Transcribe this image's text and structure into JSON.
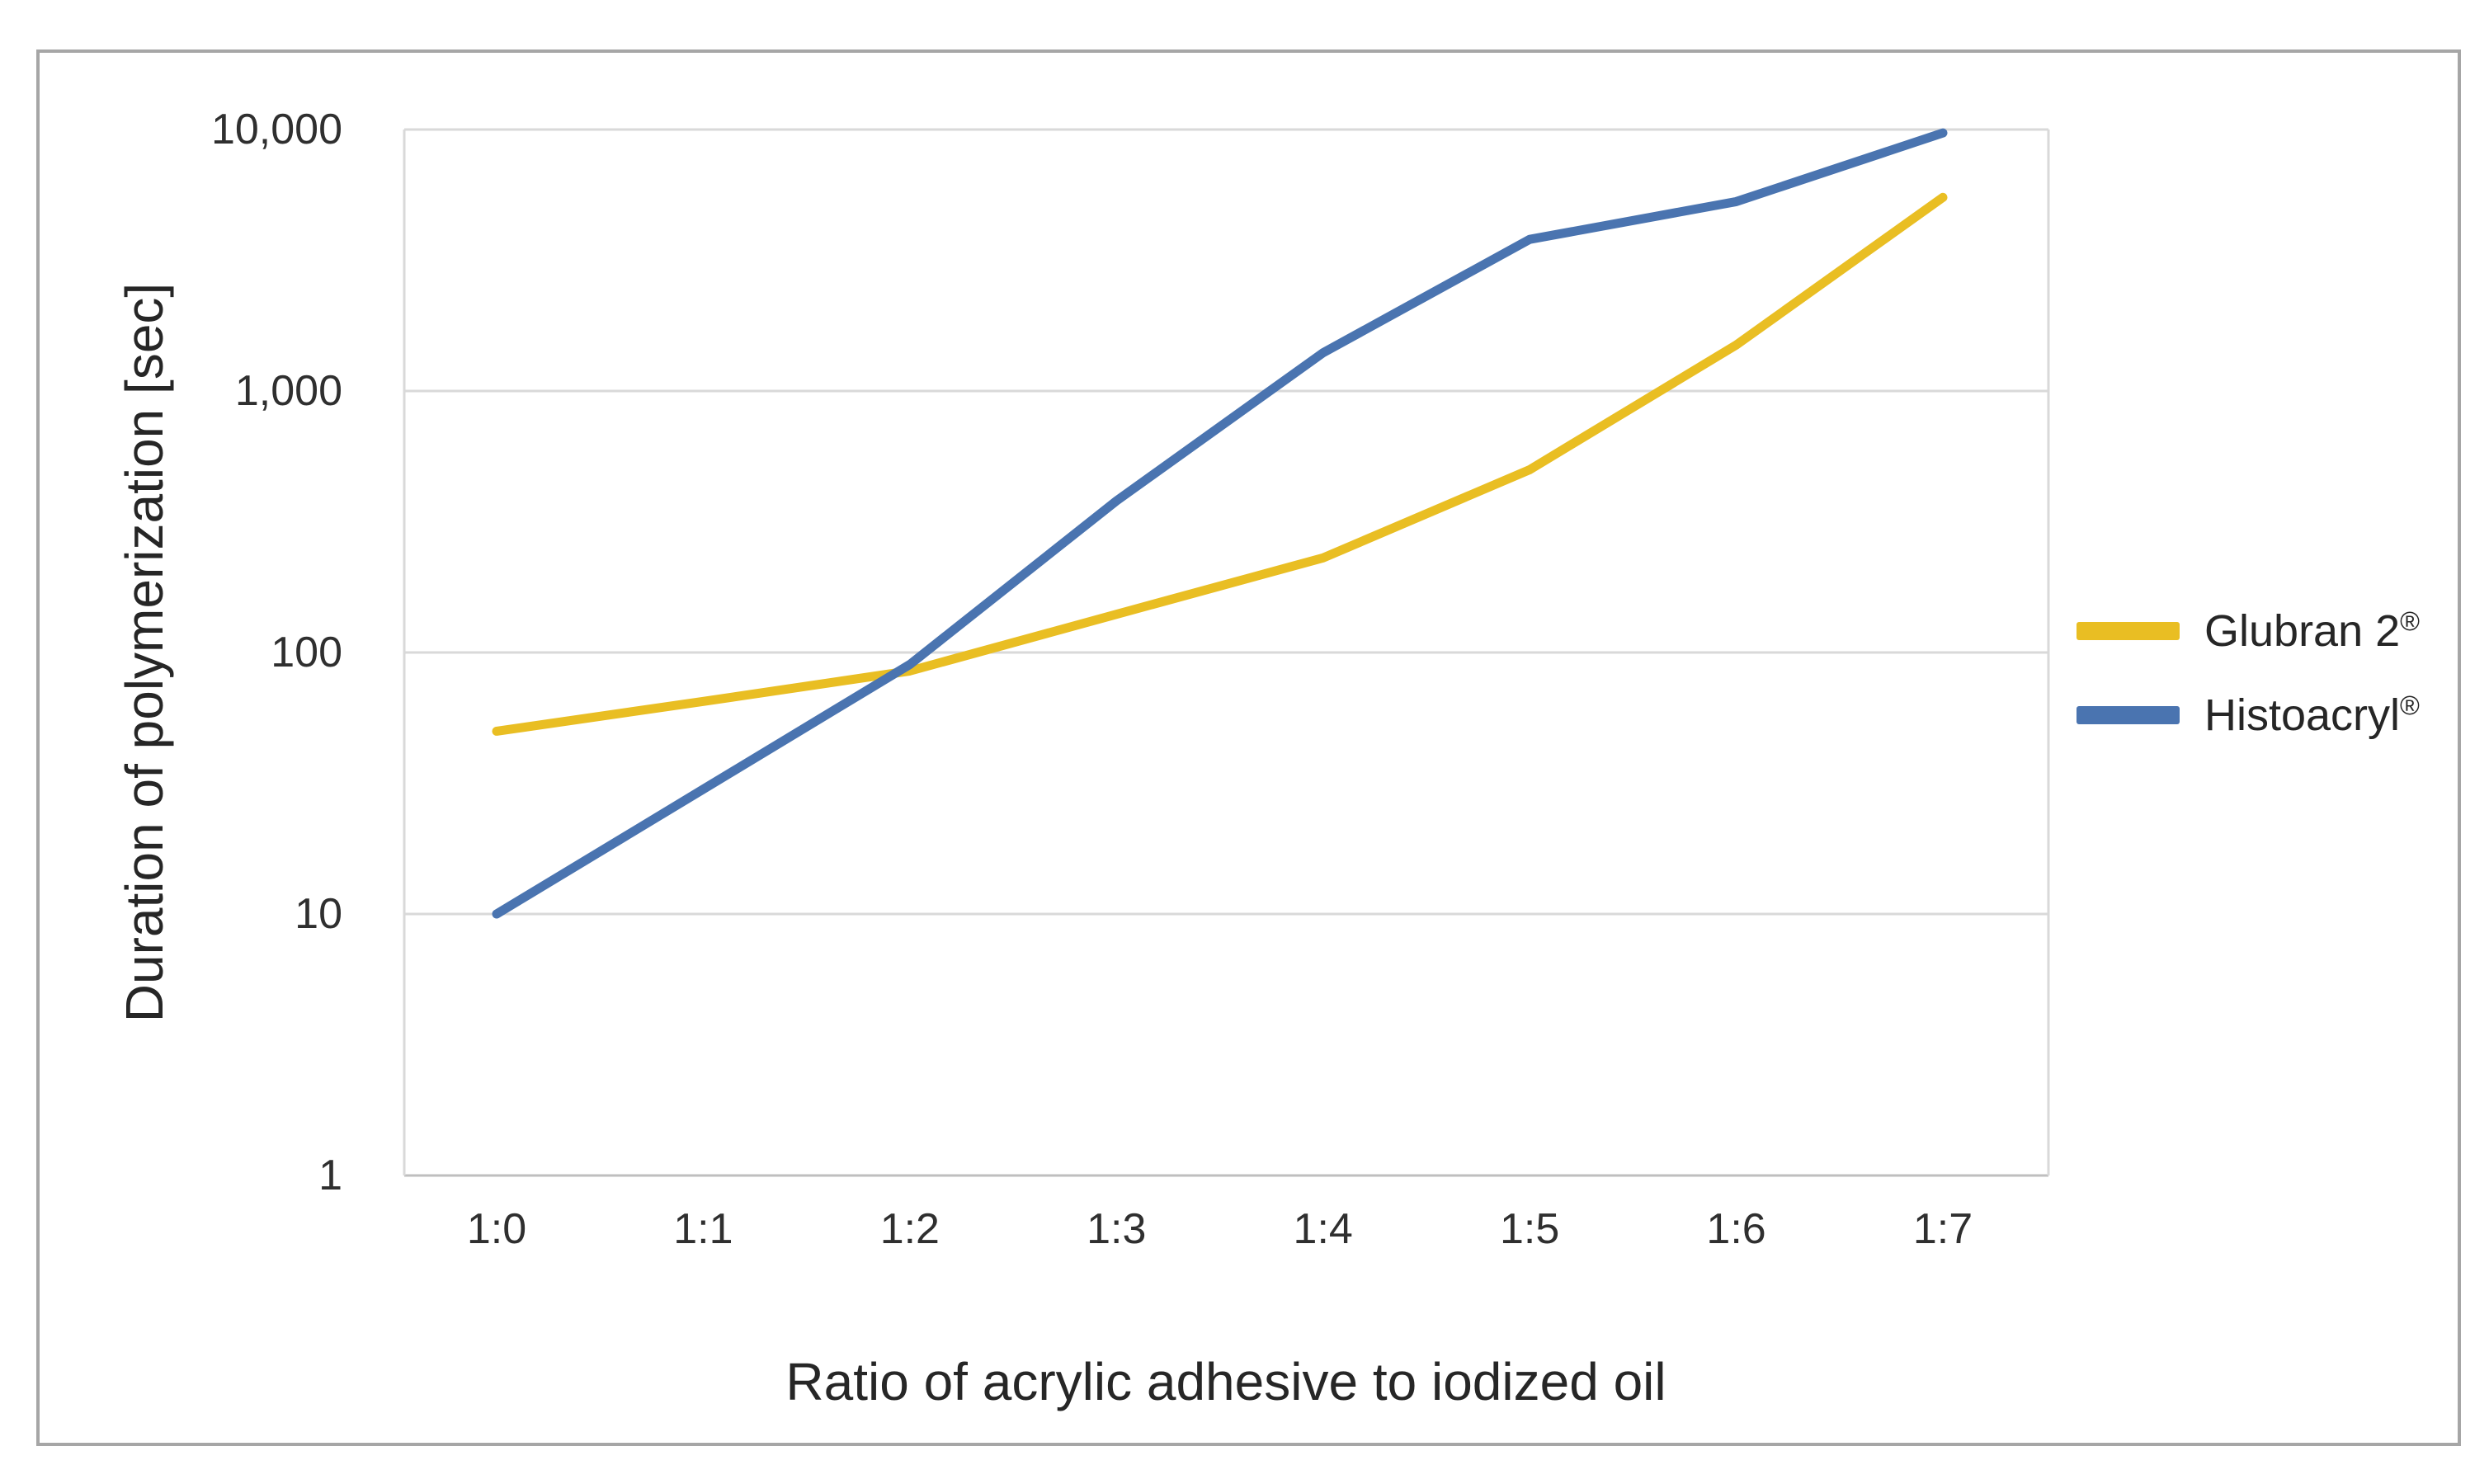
{
  "figure": {
    "background": "#FFFFFF",
    "border_color": "#A6A6A6"
  },
  "chart_data": {
    "type": "line",
    "title": "",
    "xlabel": "Ratio of acrylic adhesive to iodized oil",
    "ylabel": "Duration of polymerization [sec]",
    "x_type": "categorical",
    "y_scale": "log10",
    "ylim": [
      1,
      10000
    ],
    "grid": "horizontal gridlines at each power of 10",
    "grid_color": "#D9D9D9",
    "axis_line_color": "#BFBFBF",
    "text_color": "#2F2F2F",
    "legend_position": "right, outside plot area, middle",
    "yticks": [
      {
        "value": 10000,
        "label": "10,000"
      },
      {
        "value": 1000,
        "label": "1,000"
      },
      {
        "value": 100,
        "label": "100"
      },
      {
        "value": 10,
        "label": "10"
      },
      {
        "value": 1,
        "label": "1"
      }
    ],
    "categories": [
      "1:0",
      "1:1",
      "1:2",
      "1:3",
      "1:4",
      "1:5",
      "1:6",
      "1:7"
    ],
    "series": [
      {
        "name": "Glubran 2®",
        "color": "#E9BE23",
        "values": [
          50,
          65,
          85,
          140,
          230,
          500,
          1500,
          5500
        ]
      },
      {
        "name": "Histoacryl®",
        "color": "#4A74B0",
        "values": [
          10,
          30,
          90,
          380,
          1400,
          3800,
          5300,
          9700
        ]
      }
    ]
  },
  "legend": {
    "items": [
      {
        "text": "Glubran 2",
        "mark": "®",
        "color": "#E9BE23"
      },
      {
        "text": "Histoacryl",
        "mark": "®",
        "color": "#4A74B0"
      }
    ]
  }
}
